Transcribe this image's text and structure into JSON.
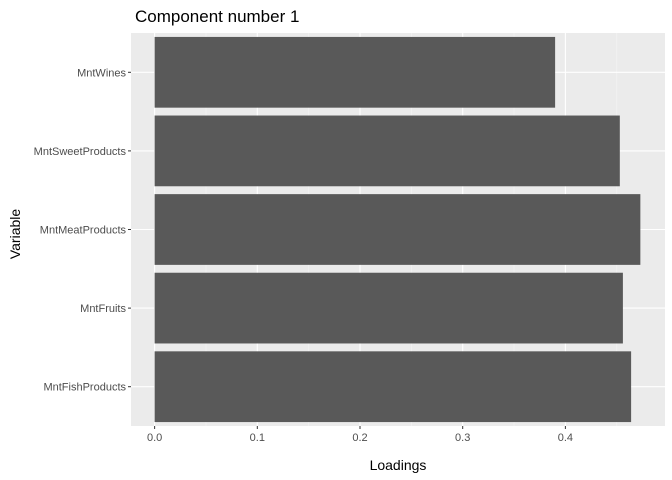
{
  "chart_data": {
    "type": "bar",
    "orientation": "horizontal",
    "title": "Component number  1",
    "xlabel": "Loadings",
    "ylabel": "Variable",
    "categories": [
      "MntFishProducts",
      "MntFruits",
      "MntMeatProducts",
      "MntSweetProducts",
      "MntWines"
    ],
    "values": [
      0.464,
      0.456,
      0.473,
      0.453,
      0.39
    ],
    "xlim": [
      -0.023,
      0.497
    ],
    "x_ticks": [
      0.0,
      0.1,
      0.2,
      0.3,
      0.4
    ],
    "x_tick_labels": [
      "0.0",
      "0.1",
      "0.2",
      "0.3",
      "0.4"
    ],
    "grid": true,
    "legend": "none",
    "colors": {
      "bar": "#595959",
      "panel_background": "#ebebeb",
      "grid_major": "#ffffff",
      "grid_minor": "#f5f5f5"
    }
  }
}
